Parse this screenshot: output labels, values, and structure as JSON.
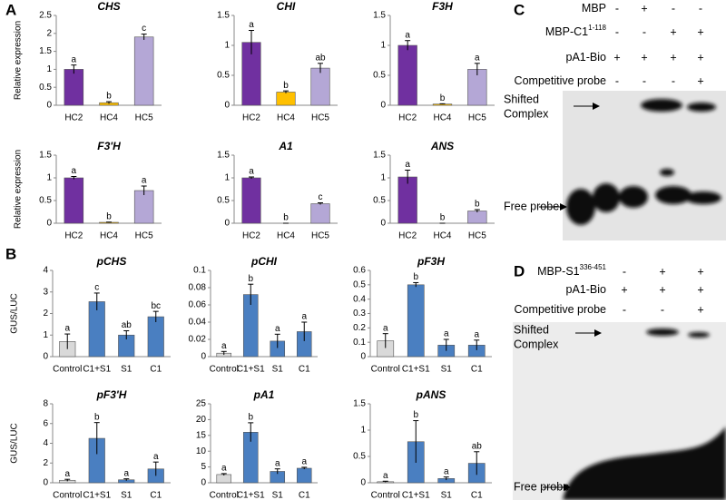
{
  "panel_labels": [
    "A",
    "B",
    "C",
    "D"
  ],
  "chart_data": [
    {
      "type": "bar",
      "title": "CHS",
      "y_label": "Relative expression",
      "categories": [
        "HC2",
        "HC4",
        "HC5"
      ],
      "values": [
        1.0,
        0.07,
        1.9
      ],
      "errors": [
        0.12,
        0.03,
        0.08
      ],
      "annotations": [
        "a",
        "b",
        "c"
      ],
      "colors": [
        "#7030a0",
        "#ffc000",
        "#b4a7d6"
      ],
      "ylim": [
        0,
        2.5
      ],
      "yticks": [
        0,
        0.5,
        1,
        1.5,
        2,
        2.5
      ]
    },
    {
      "type": "bar",
      "title": "CHI",
      "categories": [
        "HC2",
        "HC4",
        "HC5"
      ],
      "values": [
        1.05,
        0.22,
        0.62
      ],
      "errors": [
        0.2,
        0.02,
        0.08
      ],
      "annotations": [
        "a",
        "b",
        "ab"
      ],
      "colors": [
        "#7030a0",
        "#ffc000",
        "#b4a7d6"
      ],
      "ylim": [
        0,
        1.5
      ],
      "yticks": [
        0,
        0.5,
        1,
        1.5
      ]
    },
    {
      "type": "bar",
      "title": "F3H",
      "categories": [
        "HC2",
        "HC4",
        "HC5"
      ],
      "values": [
        1.0,
        0.02,
        0.6
      ],
      "errors": [
        0.08,
        0.005,
        0.1
      ],
      "annotations": [
        "a",
        "b",
        "a"
      ],
      "colors": [
        "#7030a0",
        "#ffc000",
        "#b4a7d6"
      ],
      "ylim": [
        0,
        1.5
      ],
      "yticks": [
        0,
        0.5,
        1,
        1.5
      ]
    },
    {
      "type": "bar",
      "title": "F3'H",
      "y_label": "Relative expression",
      "categories": [
        "HC2",
        "HC4",
        "HC5"
      ],
      "values": [
        1.0,
        0.02,
        0.72
      ],
      "errors": [
        0.03,
        0.005,
        0.1
      ],
      "annotations": [
        "a",
        "b",
        "a"
      ],
      "colors": [
        "#7030a0",
        "#ffc000",
        "#b4a7d6"
      ],
      "ylim": [
        0,
        1.5
      ],
      "yticks": [
        0,
        0.5,
        1,
        1.5
      ]
    },
    {
      "type": "bar",
      "title": "A1",
      "categories": [
        "HC2",
        "HC4",
        "HC5"
      ],
      "values": [
        1.0,
        0.0,
        0.43
      ],
      "errors": [
        0.02,
        0.0,
        0.02
      ],
      "annotations": [
        "a",
        "b",
        "c"
      ],
      "colors": [
        "#7030a0",
        "#ffc000",
        "#b4a7d6"
      ],
      "ylim": [
        0,
        1.5
      ],
      "yticks": [
        0,
        0.5,
        1,
        1.5
      ]
    },
    {
      "type": "bar",
      "title": "ANS",
      "categories": [
        "HC2",
        "HC4",
        "HC5"
      ],
      "values": [
        1.02,
        0.0,
        0.27
      ],
      "errors": [
        0.15,
        0.0,
        0.03
      ],
      "annotations": [
        "a",
        "b",
        "b"
      ],
      "colors": [
        "#7030a0",
        "#ffc000",
        "#b4a7d6"
      ],
      "ylim": [
        0,
        1.5
      ],
      "yticks": [
        0,
        0.5,
        1,
        1.5
      ]
    },
    {
      "type": "bar",
      "title": "pCHS",
      "y_label": "GUS/LUC",
      "categories": [
        "Control",
        "C1+S1",
        "S1",
        "C1"
      ],
      "values": [
        0.7,
        2.55,
        1.0,
        1.85
      ],
      "errors": [
        0.35,
        0.4,
        0.2,
        0.25
      ],
      "annotations": [
        "a",
        "c",
        "ab",
        "bc"
      ],
      "colors": [
        "#d9d9d9",
        "#4a7fc1",
        "#4a7fc1",
        "#4a7fc1"
      ],
      "ylim": [
        0,
        4
      ],
      "yticks": [
        0,
        1,
        2,
        3,
        4
      ]
    },
    {
      "type": "bar",
      "title": "pCHI",
      "categories": [
        "Control",
        "C1+S1",
        "S1",
        "C1"
      ],
      "values": [
        0.004,
        0.072,
        0.018,
        0.029
      ],
      "errors": [
        0.002,
        0.012,
        0.008,
        0.011
      ],
      "annotations": [
        "a",
        "b",
        "a",
        "a"
      ],
      "colors": [
        "#d9d9d9",
        "#4a7fc1",
        "#4a7fc1",
        "#4a7fc1"
      ],
      "ylim": [
        0,
        0.1
      ],
      "yticks": [
        0,
        0.02,
        0.04,
        0.06,
        0.08,
        0.1
      ]
    },
    {
      "type": "bar",
      "title": "pF3H",
      "categories": [
        "Control",
        "C1+S1",
        "S1",
        "C1"
      ],
      "values": [
        0.11,
        0.5,
        0.08,
        0.08
      ],
      "errors": [
        0.05,
        0.015,
        0.04,
        0.035
      ],
      "annotations": [
        "a",
        "b",
        "a",
        "a"
      ],
      "colors": [
        "#d9d9d9",
        "#4a7fc1",
        "#4a7fc1",
        "#4a7fc1"
      ],
      "ylim": [
        0,
        0.6
      ],
      "yticks": [
        0,
        0.1,
        0.2,
        0.3,
        0.4,
        0.5,
        0.6
      ]
    },
    {
      "type": "bar",
      "title": "pF3'H",
      "y_label": "GUS/LUC",
      "categories": [
        "Control",
        "C1+S1",
        "S1",
        "C1"
      ],
      "values": [
        0.25,
        4.5,
        0.3,
        1.4
      ],
      "errors": [
        0.1,
        1.6,
        0.1,
        0.7
      ],
      "annotations": [
        "a",
        "b",
        "a",
        "a"
      ],
      "colors": [
        "#d9d9d9",
        "#4a7fc1",
        "#4a7fc1",
        "#4a7fc1"
      ],
      "ylim": [
        0,
        8
      ],
      "yticks": [
        0,
        2,
        4,
        6,
        8
      ]
    },
    {
      "type": "bar",
      "title": "pA1",
      "categories": [
        "Control",
        "C1+S1",
        "S1",
        "C1"
      ],
      "values": [
        2.6,
        16,
        3.6,
        4.6
      ],
      "errors": [
        0.3,
        3,
        0.8,
        0.3
      ],
      "annotations": [
        "a",
        "b",
        "a",
        "a"
      ],
      "colors": [
        "#d9d9d9",
        "#4a7fc1",
        "#4a7fc1",
        "#4a7fc1"
      ],
      "ylim": [
        0,
        25
      ],
      "yticks": [
        0,
        5,
        10,
        15,
        20,
        25
      ]
    },
    {
      "type": "bar",
      "title": "pANS",
      "categories": [
        "Control",
        "C1+S1",
        "S1",
        "C1"
      ],
      "values": [
        0.02,
        0.78,
        0.08,
        0.37
      ],
      "errors": [
        0.01,
        0.4,
        0.03,
        0.22
      ],
      "annotations": [
        "a",
        "b",
        "a",
        "ab"
      ],
      "colors": [
        "#d9d9d9",
        "#4a7fc1",
        "#4a7fc1",
        "#4a7fc1"
      ],
      "ylim": [
        0,
        1.5
      ],
      "yticks": [
        0,
        0.5,
        1,
        1.5
      ]
    }
  ],
  "gels": [
    {
      "rows": [
        {
          "label": "MBP",
          "cells": [
            "-",
            "+",
            "-",
            "-"
          ]
        },
        {
          "label": "MBP-C1",
          "sup": "1-118",
          "cells": [
            "-",
            "-",
            "+",
            "+"
          ]
        },
        {
          "label": "pA1-Bio",
          "cells": [
            "+",
            "+",
            "+",
            "+"
          ]
        },
        {
          "label": "Competitive probe",
          "cells": [
            "-",
            "-",
            "-",
            "+"
          ]
        }
      ],
      "shifted": [
        "Shifted",
        "Complex"
      ],
      "free": "Free probe"
    },
    {
      "rows": [
        {
          "label": "MBP-S1",
          "sup": "336-451",
          "cells": [
            "-",
            "+",
            "+"
          ]
        },
        {
          "label": "pA1-Bio",
          "cells": [
            "+",
            "+",
            "+"
          ]
        },
        {
          "label": "Competitive probe",
          "cells": [
            "-",
            "-",
            "+"
          ]
        }
      ],
      "shifted": [
        "Shifted",
        "Complex"
      ],
      "free": "Free probe"
    }
  ]
}
